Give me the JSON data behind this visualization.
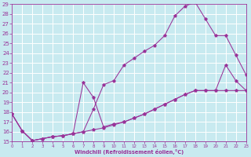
{
  "xlabel": "Windchill (Refroidissement éolien,°C)",
  "background_color": "#c8eaf0",
  "grid_color": "#ffffff",
  "line_color": "#993399",
  "xlim": [
    0,
    23
  ],
  "ylim": [
    15,
    29
  ],
  "xticks": [
    0,
    1,
    2,
    3,
    4,
    5,
    6,
    7,
    8,
    9,
    10,
    11,
    12,
    13,
    14,
    15,
    16,
    17,
    18,
    19,
    20,
    21,
    22,
    23
  ],
  "yticks": [
    15,
    16,
    17,
    18,
    19,
    20,
    21,
    22,
    23,
    24,
    25,
    26,
    27,
    28,
    29
  ],
  "curve1_x": [
    0,
    1,
    2,
    3,
    4,
    5,
    6,
    7,
    8,
    9,
    10,
    11,
    12,
    13,
    14,
    15,
    16,
    17,
    18,
    19,
    20,
    21,
    22,
    23
  ],
  "curve1_y": [
    17.8,
    16.1,
    15.1,
    15.3,
    15.5,
    15.6,
    15.8,
    16.0,
    16.2,
    16.4,
    16.7,
    17.0,
    17.4,
    17.8,
    18.3,
    18.8,
    19.3,
    19.8,
    20.2,
    20.2,
    20.2,
    20.2,
    20.2,
    20.2
  ],
  "curve2_x": [
    0,
    1,
    2,
    3,
    4,
    5,
    6,
    7,
    8,
    9,
    10,
    11,
    12,
    13,
    14,
    15,
    16,
    17,
    18,
    19,
    20,
    21,
    22,
    23
  ],
  "curve2_y": [
    17.8,
    16.1,
    15.1,
    15.3,
    15.5,
    15.6,
    15.8,
    21.0,
    19.5,
    16.5,
    16.8,
    17.0,
    17.4,
    17.8,
    18.3,
    18.8,
    19.3,
    19.8,
    20.2,
    20.2,
    20.2,
    22.8,
    21.2,
    20.2
  ],
  "curve3_x": [
    0,
    1,
    2,
    3,
    4,
    5,
    6,
    7,
    8,
    9,
    10,
    11,
    12,
    13,
    14,
    15,
    16,
    17,
    18,
    19,
    20,
    21,
    22,
    23
  ],
  "curve3_y": [
    17.8,
    16.1,
    15.1,
    15.3,
    15.5,
    15.6,
    15.8,
    16.0,
    18.3,
    20.8,
    21.2,
    22.8,
    23.5,
    24.2,
    24.8,
    25.8,
    27.8,
    28.8,
    29.2,
    27.5,
    25.8,
    25.8,
    23.8,
    21.8
  ]
}
